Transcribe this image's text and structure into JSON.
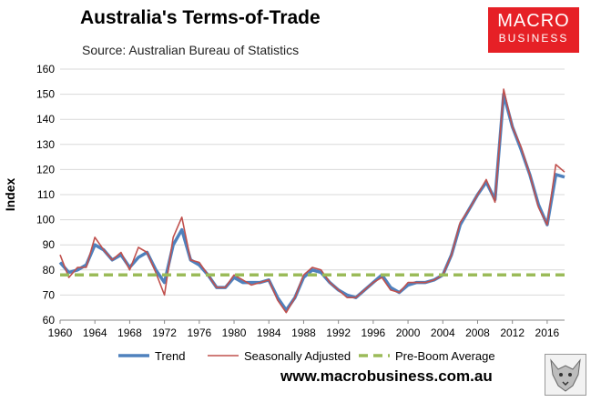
{
  "header": {
    "title": "Australia's Terms-of-Trade",
    "subtitle": "Source: Australian Bureau of Statistics"
  },
  "logo": {
    "line1": "MACRO",
    "line2": "BUSINESS",
    "color": "#e62026"
  },
  "footer": {
    "url": "www.macrobusiness.com.au"
  },
  "chart_data": {
    "type": "line",
    "title": "Australia's Terms-of-Trade",
    "subtitle": "Source: Australian Bureau of Statistics",
    "xlabel": "",
    "ylabel": "Index",
    "xlim": [
      1960,
      2018
    ],
    "ylim": [
      60,
      160
    ],
    "x_ticks": [
      "1960",
      "1964",
      "1968",
      "1972",
      "1976",
      "1980",
      "1984",
      "1988",
      "1992",
      "1996",
      "2000",
      "2004",
      "2008",
      "2012",
      "2016"
    ],
    "y_ticks": [
      "60",
      "70",
      "80",
      "90",
      "100",
      "110",
      "120",
      "130",
      "140",
      "150",
      "160"
    ],
    "grid": "horizontal",
    "legend_position": "bottom",
    "series": [
      {
        "name": "Trend",
        "color": "#4f81bd",
        "style": "solid",
        "x": [
          1960,
          1961,
          1962,
          1963,
          1964,
          1965,
          1966,
          1967,
          1968,
          1969,
          1970,
          1971,
          1972,
          1973,
          1974,
          1975,
          1976,
          1977,
          1978,
          1979,
          1980,
          1981,
          1982,
          1983,
          1984,
          1985,
          1986,
          1987,
          1988,
          1989,
          1990,
          1991,
          1992,
          1993,
          1994,
          1995,
          1996,
          1997,
          1998,
          1999,
          2000,
          2001,
          2002,
          2003,
          2004,
          2005,
          2006,
          2007,
          2008,
          2009,
          2010,
          2011,
          2012,
          2013,
          2014,
          2015,
          2016,
          2017,
          2018
        ],
        "values": [
          83,
          79,
          80,
          82,
          90,
          88,
          84,
          86,
          81,
          85,
          87,
          80,
          75,
          90,
          96,
          84,
          82,
          78,
          73,
          73,
          77,
          75,
          75,
          75,
          76,
          69,
          64,
          69,
          77,
          80,
          79,
          75,
          72,
          70,
          69,
          72,
          75,
          78,
          73,
          71,
          74,
          75,
          75,
          76,
          78,
          86,
          98,
          104,
          110,
          115,
          108,
          150,
          137,
          128,
          118,
          106,
          98,
          118,
          117
        ]
      },
      {
        "name": "Seasonally Adjusted",
        "color": "#c0504d",
        "style": "solid",
        "x": [
          1960,
          1961,
          1962,
          1963,
          1964,
          1965,
          1966,
          1967,
          1968,
          1969,
          1970,
          1971,
          1972,
          1973,
          1974,
          1975,
          1976,
          1977,
          1978,
          1979,
          1980,
          1981,
          1982,
          1983,
          1984,
          1985,
          1986,
          1987,
          1988,
          1989,
          1990,
          1991,
          1992,
          1993,
          1994,
          1995,
          1996,
          1997,
          1998,
          1999,
          2000,
          2001,
          2002,
          2003,
          2004,
          2005,
          2006,
          2007,
          2008,
          2009,
          2010,
          2011,
          2012,
          2013,
          2014,
          2015,
          2016,
          2017,
          2018
        ],
        "values": [
          86,
          77,
          81,
          81,
          93,
          88,
          84,
          87,
          80,
          89,
          87,
          79,
          70,
          93,
          101,
          84,
          83,
          78,
          73,
          73,
          78,
          76,
          74,
          75,
          76,
          68,
          63,
          69,
          78,
          81,
          80,
          75,
          72,
          69,
          69,
          72,
          75,
          77,
          72,
          71,
          75,
          75,
          75,
          76,
          78,
          86,
          99,
          104,
          110,
          116,
          107,
          152,
          137,
          129,
          118,
          105,
          98,
          122,
          119
        ]
      },
      {
        "name": "Pre-Boom Average",
        "color": "#9bbb59",
        "style": "dashed",
        "x": [
          1960,
          2018
        ],
        "values": [
          78,
          78
        ]
      }
    ]
  }
}
